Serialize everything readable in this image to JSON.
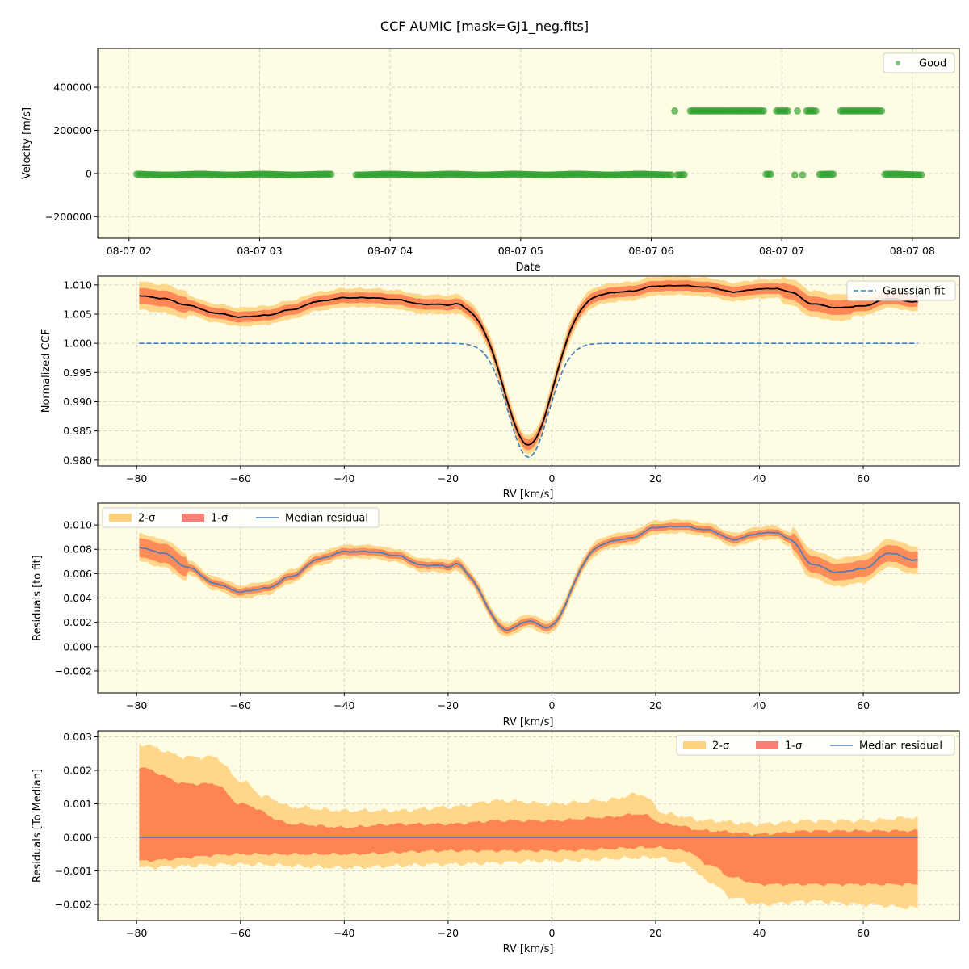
{
  "figure": {
    "title": "CCF AUMIC [mask=GJ1_neg.fits]",
    "background": "#fefce3"
  },
  "chart_data": [
    {
      "id": "velocity",
      "type": "scatter",
      "xlabel": "Date",
      "ylabel": "Velocity [m/s]",
      "x_ticks": [
        "08-07 02",
        "08-07 03",
        "08-07 04",
        "08-07 05",
        "08-07 06",
        "08-07 07",
        "08-07 08"
      ],
      "xlim_hours": [
        1.76,
        8.36
      ],
      "ylim": [
        -300000,
        580000
      ],
      "y_ticks": [
        -200000,
        0,
        200000,
        400000
      ],
      "y_tick_labels": [
        "−200000",
        "0",
        "200000",
        "400000"
      ],
      "legend": {
        "position": "top-right",
        "entries": [
          {
            "label": "Good",
            "color": "#4caf50"
          }
        ]
      },
      "series": [
        {
          "name": "Good",
          "color": "#2ca02c",
          "low_value": -5000,
          "high_value": 290000,
          "segments_hours": [
            {
              "from": 2.06,
              "to": 3.55,
              "level": "low"
            },
            {
              "from": 3.74,
              "to": 6.16,
              "level": "low"
            },
            {
              "from": 6.2,
              "to": 6.26,
              "level": "low"
            },
            {
              "from": 6.18,
              "to": 6.18,
              "level": "high"
            },
            {
              "from": 6.3,
              "to": 6.86,
              "level": "high"
            },
            {
              "from": 6.88,
              "to": 6.93,
              "level": "low"
            },
            {
              "from": 6.96,
              "to": 7.05,
              "level": "high"
            },
            {
              "from": 7.1,
              "to": 7.1,
              "level": "low"
            },
            {
              "from": 7.12,
              "to": 7.12,
              "level": "high"
            },
            {
              "from": 7.16,
              "to": 7.16,
              "level": "low"
            },
            {
              "from": 7.19,
              "to": 7.27,
              "level": "high"
            },
            {
              "from": 7.29,
              "to": 7.41,
              "level": "low"
            },
            {
              "from": 7.45,
              "to": 7.77,
              "level": "high"
            },
            {
              "from": 7.79,
              "to": 8.08,
              "level": "low"
            }
          ]
        }
      ]
    },
    {
      "id": "ccf",
      "type": "line",
      "xlabel": "RV [km/s]",
      "ylabel": "Normalized CCF",
      "xlim": [
        -87.5,
        78.5
      ],
      "ylim": [
        0.979,
        1.0115
      ],
      "x_ticks": [
        -80,
        -60,
        -40,
        -20,
        0,
        20,
        40,
        60
      ],
      "x_tick_labels": [
        "−80",
        "−60",
        "−40",
        "−20",
        "0",
        "20",
        "40",
        "60"
      ],
      "y_ticks": [
        0.98,
        0.985,
        0.99,
        0.995,
        1.0,
        1.005,
        1.01
      ],
      "y_tick_labels": [
        "0.980",
        "0.985",
        "0.990",
        "0.995",
        "1.000",
        "1.005",
        "1.010"
      ],
      "legend": {
        "position": "top-right",
        "entries": [
          {
            "label": "Gaussian fit",
            "color": "#3a7fbf"
          }
        ]
      },
      "continuum_nodes": [
        [
          -80,
          1.0082
        ],
        [
          -75,
          1.0077
        ],
        [
          -70,
          1.0065
        ],
        [
          -65,
          1.0052
        ],
        [
          -60,
          1.0045
        ],
        [
          -55,
          1.0048
        ],
        [
          -50,
          1.0058
        ],
        [
          -45,
          1.0072
        ],
        [
          -40,
          1.0078
        ],
        [
          -35,
          1.0078
        ],
        [
          -30,
          1.0075
        ],
        [
          -25,
          1.0067
        ],
        [
          -20,
          1.0067
        ],
        [
          -18,
          1.0072
        ],
        [
          -16,
          1.007
        ],
        [
          10,
          1.0087
        ],
        [
          15,
          1.0089
        ],
        [
          20,
          1.0098
        ],
        [
          25,
          1.0099
        ],
        [
          30,
          1.0096
        ],
        [
          35,
          1.0088
        ],
        [
          40,
          1.0093
        ],
        [
          43,
          1.0094
        ],
        [
          46,
          1.0088
        ],
        [
          50,
          1.0068
        ],
        [
          55,
          1.0061
        ],
        [
          60,
          1.0064
        ],
        [
          65,
          1.0077
        ],
        [
          70,
          1.0071
        ]
      ],
      "line_center": -4.5,
      "line_min": 0.9826,
      "line_sigma": 4.8,
      "gaussian_fit": {
        "center": -4.5,
        "depth": 0.0195,
        "sigma": 3.9,
        "baseline": 1.0
      },
      "band1_half": 0.0009,
      "band2_half": 0.0016
    },
    {
      "id": "residuals_fit",
      "type": "area",
      "xlabel": "RV [km/s]",
      "ylabel": "Residuals [to fit]",
      "xlim": [
        -87.5,
        78.5
      ],
      "ylim": [
        -0.0038,
        0.0118
      ],
      "x_ticks": [
        -80,
        -60,
        -40,
        -20,
        0,
        20,
        40,
        60
      ],
      "x_tick_labels": [
        "−80",
        "−60",
        "−40",
        "−20",
        "0",
        "20",
        "40",
        "60"
      ],
      "y_ticks": [
        -0.002,
        0.0,
        0.002,
        0.004,
        0.006,
        0.008,
        0.01
      ],
      "y_tick_labels": [
        "−0.002",
        "0.000",
        "0.002",
        "0.004",
        "0.006",
        "0.008",
        "0.010"
      ],
      "legend": {
        "position": "top-left",
        "entries": [
          {
            "label": "2-σ",
            "color": "#ffd27f"
          },
          {
            "label": "1-σ",
            "color": "#f77f75"
          },
          {
            "label": "Median residual",
            "color": "#4f7fb5"
          }
        ]
      }
    },
    {
      "id": "residuals_median",
      "type": "area",
      "xlabel": "RV [km/s]",
      "ylabel": "Residuals [To Median]",
      "xlim": [
        -87.5,
        78.5
      ],
      "ylim": [
        -0.00248,
        0.00318
      ],
      "x_ticks": [
        -80,
        -60,
        -40,
        -20,
        0,
        20,
        40,
        60
      ],
      "x_tick_labels": [
        "−80",
        "−60",
        "−40",
        "−20",
        "0",
        "20",
        "40",
        "60"
      ],
      "y_ticks": [
        -0.002,
        -0.001,
        0.0,
        0.001,
        0.002,
        0.003
      ],
      "y_tick_labels": [
        "−0.002",
        "−0.001",
        "0.000",
        "0.001",
        "0.002",
        "0.003"
      ],
      "legend": {
        "position": "top-right",
        "entries": [
          {
            "label": "2-σ",
            "color": "#ffd27f"
          },
          {
            "label": "1-σ",
            "color": "#f77f75"
          },
          {
            "label": "Median residual",
            "color": "#4f7fb5"
          }
        ]
      },
      "sigma1_upper_nodes": [
        [
          -80,
          0.0021
        ],
        [
          -70,
          0.0016
        ],
        [
          -65,
          0.0016
        ],
        [
          -60,
          0.001
        ],
        [
          -50,
          0.0004
        ],
        [
          -40,
          0.0003
        ],
        [
          -30,
          0.0004
        ],
        [
          -20,
          0.0004
        ],
        [
          -10,
          0.0005
        ],
        [
          0,
          0.0005
        ],
        [
          10,
          0.0006
        ],
        [
          17,
          0.0007
        ],
        [
          22,
          0.0004
        ],
        [
          30,
          0.0002
        ],
        [
          40,
          0.0001
        ],
        [
          50,
          0.0002
        ],
        [
          60,
          0.0002
        ],
        [
          70,
          0.0002
        ]
      ],
      "sigma1_lower_nodes": [
        [
          -80,
          -0.0007
        ],
        [
          -60,
          -0.0005
        ],
        [
          -40,
          -0.0005
        ],
        [
          -20,
          -0.0004
        ],
        [
          0,
          -0.0004
        ],
        [
          20,
          -0.0003
        ],
        [
          26,
          -0.0004
        ],
        [
          30,
          -0.0008
        ],
        [
          35,
          -0.0012
        ],
        [
          40,
          -0.0014
        ],
        [
          50,
          -0.0014
        ],
        [
          60,
          -0.0014
        ],
        [
          70,
          -0.0014
        ]
      ],
      "sigma2_upper_nodes": [
        [
          -80,
          0.0028
        ],
        [
          -70,
          0.0024
        ],
        [
          -65,
          0.0024
        ],
        [
          -60,
          0.0017
        ],
        [
          -55,
          0.0012
        ],
        [
          -50,
          0.0009
        ],
        [
          -40,
          0.0008
        ],
        [
          -30,
          0.0008
        ],
        [
          -20,
          0.0009
        ],
        [
          -10,
          0.0011
        ],
        [
          0,
          0.001
        ],
        [
          10,
          0.0011
        ],
        [
          17,
          0.0013
        ],
        [
          22,
          0.0007
        ],
        [
          30,
          0.0005
        ],
        [
          40,
          0.0004
        ],
        [
          50,
          0.0005
        ],
        [
          60,
          0.0005
        ],
        [
          70,
          0.0006
        ]
      ],
      "sigma2_lower_nodes": [
        [
          -80,
          -0.0009
        ],
        [
          -60,
          -0.0008
        ],
        [
          -40,
          -0.0009
        ],
        [
          -20,
          -0.0008
        ],
        [
          0,
          -0.0007
        ],
        [
          20,
          -0.0006
        ],
        [
          26,
          -0.0008
        ],
        [
          30,
          -0.0013
        ],
        [
          35,
          -0.0018
        ],
        [
          40,
          -0.002
        ],
        [
          50,
          -0.0019
        ],
        [
          60,
          -0.002
        ],
        [
          70,
          -0.0021
        ]
      ]
    }
  ]
}
